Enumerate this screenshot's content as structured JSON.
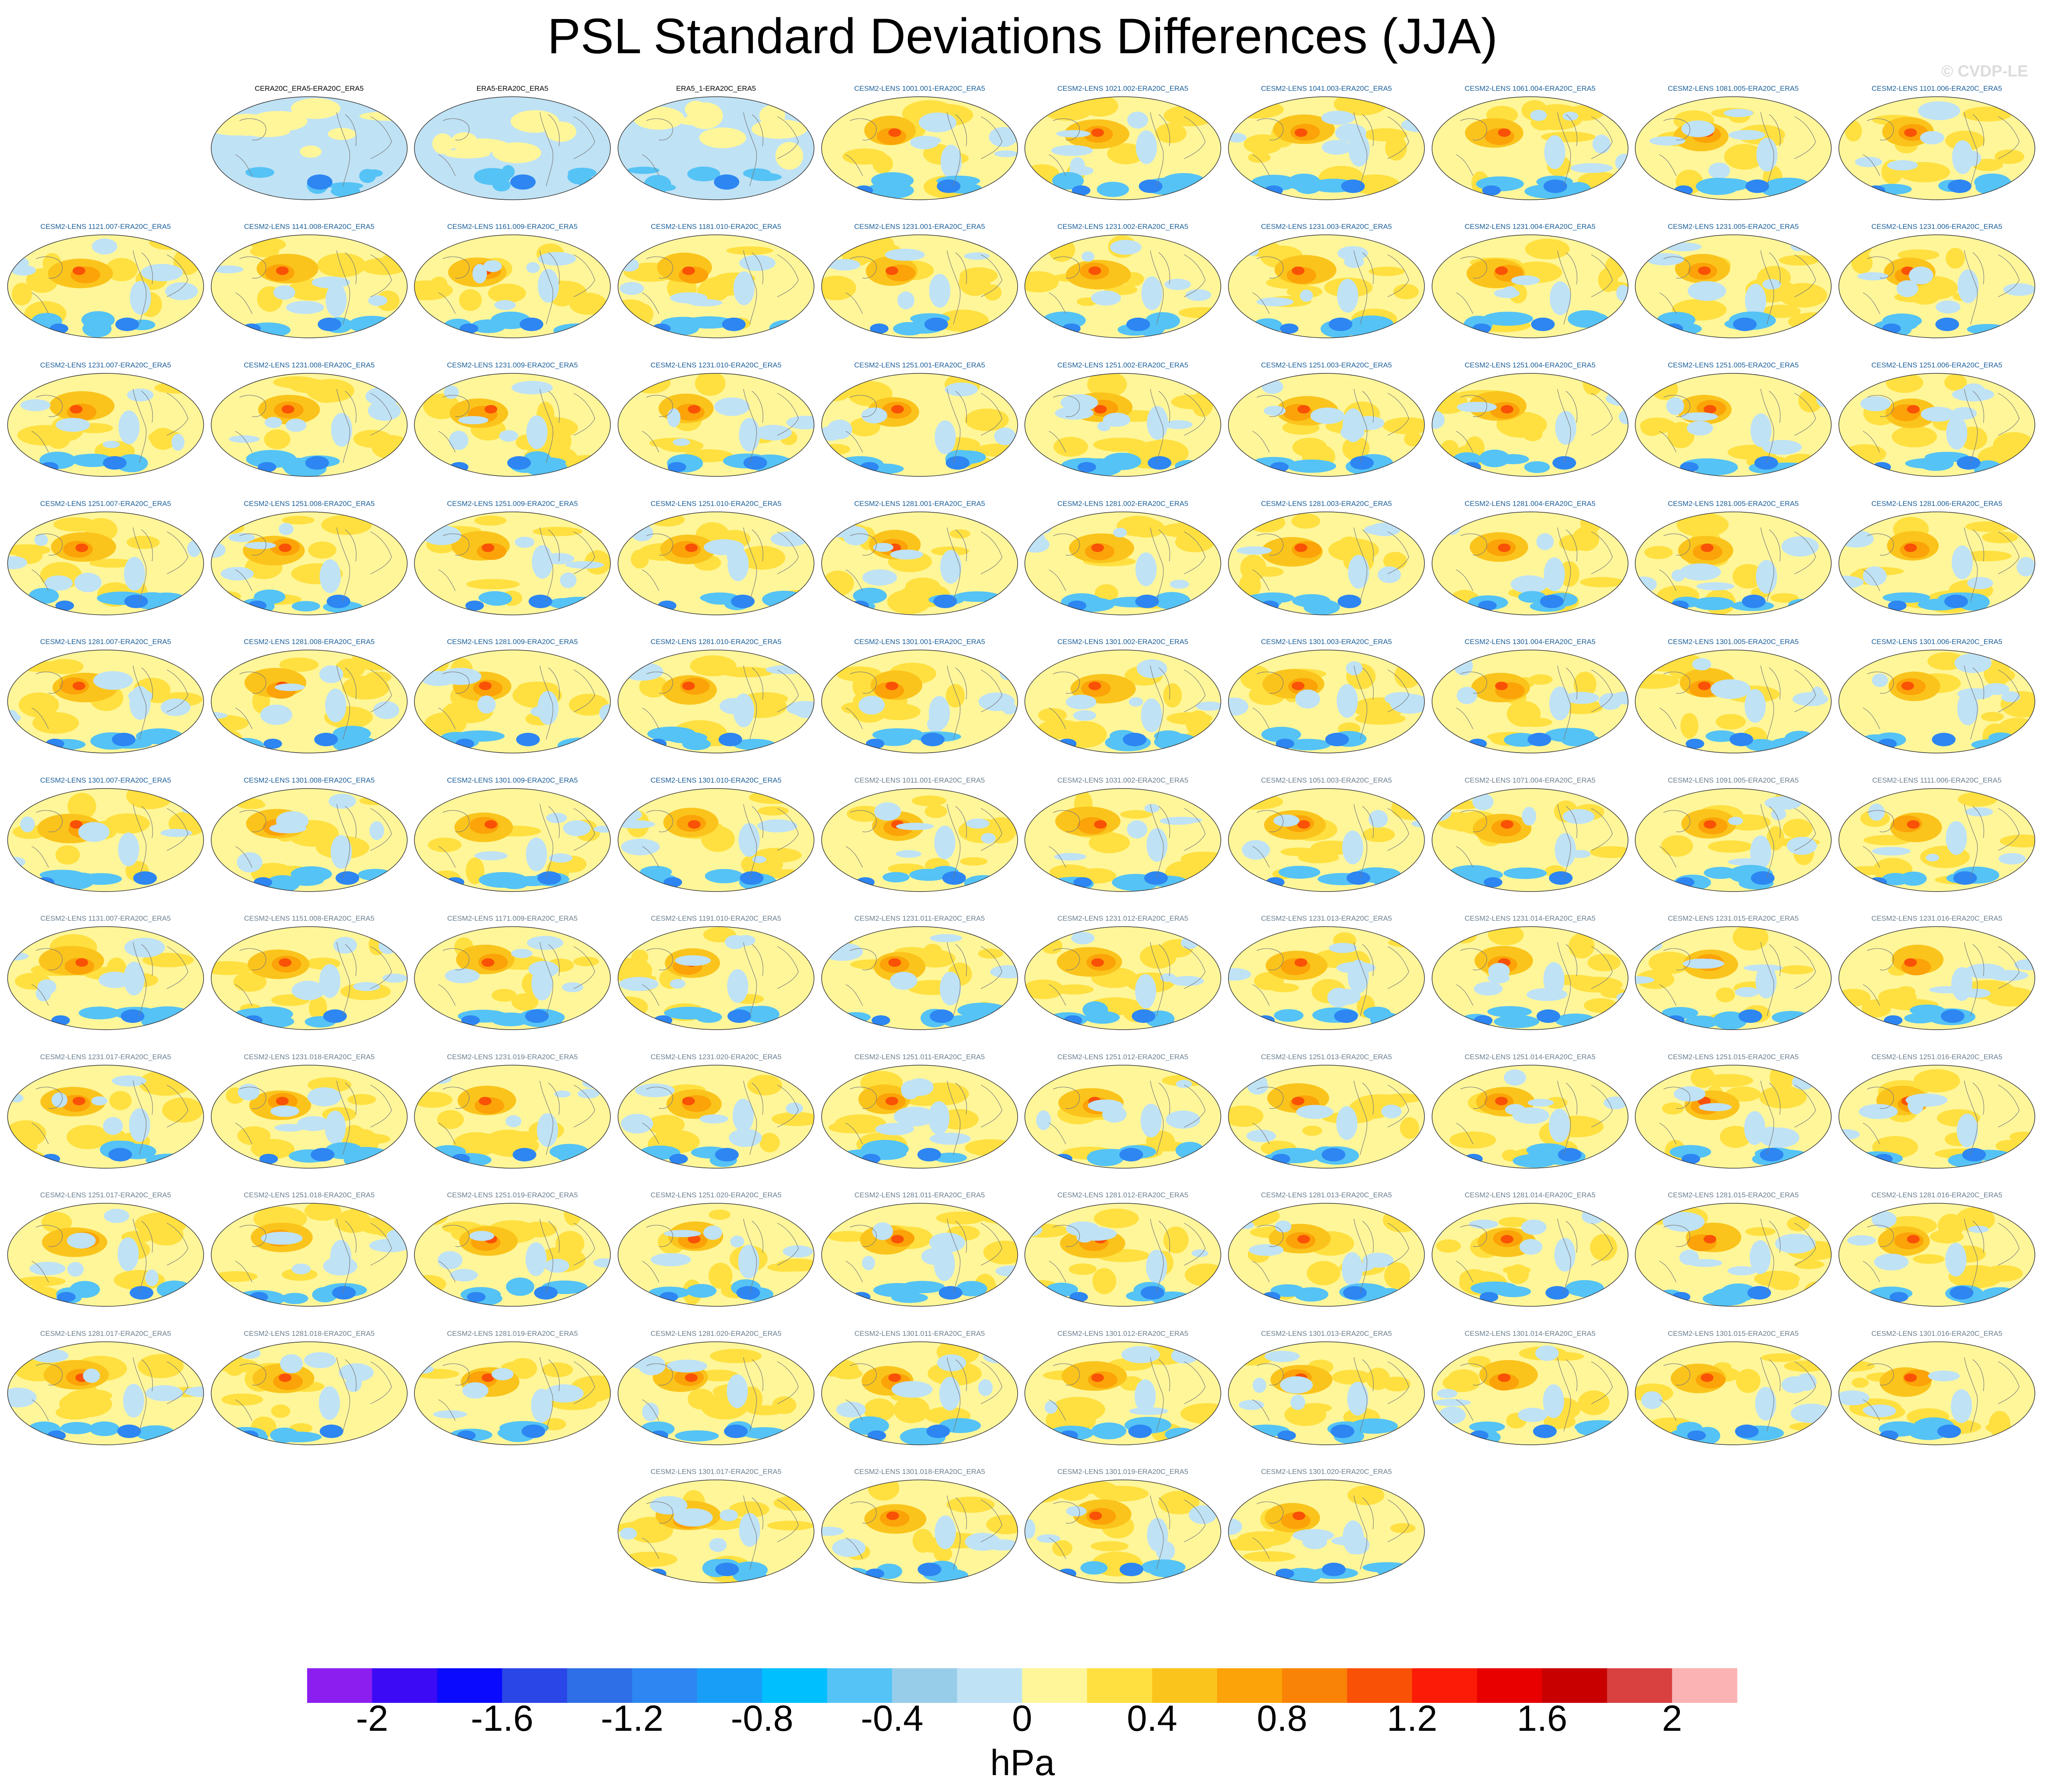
{
  "title": "PSL Standard Deviations Differences (JJA)",
  "watermark": "© CVDP-LE",
  "chart_data": {
    "type": "heatmap",
    "title": "PSL Standard Deviations Differences (JJA)",
    "panels": [
      {
        "label": "CERA20C_ERA5-ERA20C_ERA5",
        "group": "obs"
      },
      {
        "label": "ERA5-ERA20C_ERA5",
        "group": "obs"
      },
      {
        "label": "ERA5_1-ERA20C_ERA5",
        "group": "obs"
      },
      {
        "label": "CESM2-LENS 1001.001-ERA20C_ERA5",
        "group": "a"
      },
      {
        "label": "CESM2-LENS 1021.002-ERA20C_ERA5",
        "group": "a"
      },
      {
        "label": "CESM2-LENS 1041.003-ERA20C_ERA5",
        "group": "a"
      },
      {
        "label": "CESM2-LENS 1061.004-ERA20C_ERA5",
        "group": "a"
      },
      {
        "label": "CESM2-LENS 1081.005-ERA20C_ERA5",
        "group": "a"
      },
      {
        "label": "CESM2-LENS 1101.006-ERA20C_ERA5",
        "group": "a"
      },
      {
        "label": "CESM2-LENS 1121.007-ERA20C_ERA5",
        "group": "a"
      },
      {
        "label": "CESM2-LENS 1141.008-ERA20C_ERA5",
        "group": "a"
      },
      {
        "label": "CESM2-LENS 1161.009-ERA20C_ERA5",
        "group": "a"
      },
      {
        "label": "CESM2-LENS 1181.010-ERA20C_ERA5",
        "group": "a"
      },
      {
        "label": "CESM2-LENS 1231.001-ERA20C_ERA5",
        "group": "a"
      },
      {
        "label": "CESM2-LENS 1231.002-ERA20C_ERA5",
        "group": "a"
      },
      {
        "label": "CESM2-LENS 1231.003-ERA20C_ERA5",
        "group": "a"
      },
      {
        "label": "CESM2-LENS 1231.004-ERA20C_ERA5",
        "group": "a"
      },
      {
        "label": "CESM2-LENS 1231.005-ERA20C_ERA5",
        "group": "a"
      },
      {
        "label": "CESM2-LENS 1231.006-ERA20C_ERA5",
        "group": "a"
      },
      {
        "label": "CESM2-LENS 1231.007-ERA20C_ERA5",
        "group": "a"
      },
      {
        "label": "CESM2-LENS 1231.008-ERA20C_ERA5",
        "group": "a"
      },
      {
        "label": "CESM2-LENS 1231.009-ERA20C_ERA5",
        "group": "a"
      },
      {
        "label": "CESM2-LENS 1231.010-ERA20C_ERA5",
        "group": "a"
      },
      {
        "label": "CESM2-LENS 1251.001-ERA20C_ERA5",
        "group": "a"
      },
      {
        "label": "CESM2-LENS 1251.002-ERA20C_ERA5",
        "group": "a"
      },
      {
        "label": "CESM2-LENS 1251.003-ERA20C_ERA5",
        "group": "a"
      },
      {
        "label": "CESM2-LENS 1251.004-ERA20C_ERA5",
        "group": "a"
      },
      {
        "label": "CESM2-LENS 1251.005-ERA20C_ERA5",
        "group": "a"
      },
      {
        "label": "CESM2-LENS 1251.006-ERA20C_ERA5",
        "group": "a"
      },
      {
        "label": "CESM2-LENS 1251.007-ERA20C_ERA5",
        "group": "a"
      },
      {
        "label": "CESM2-LENS 1251.008-ERA20C_ERA5",
        "group": "a"
      },
      {
        "label": "CESM2-LENS 1251.009-ERA20C_ERA5",
        "group": "a"
      },
      {
        "label": "CESM2-LENS 1251.010-ERA20C_ERA5",
        "group": "a"
      },
      {
        "label": "CESM2-LENS 1281.001-ERA20C_ERA5",
        "group": "a"
      },
      {
        "label": "CESM2-LENS 1281.002-ERA20C_ERA5",
        "group": "a"
      },
      {
        "label": "CESM2-LENS 1281.003-ERA20C_ERA5",
        "group": "a"
      },
      {
        "label": "CESM2-LENS 1281.004-ERA20C_ERA5",
        "group": "a"
      },
      {
        "label": "CESM2-LENS 1281.005-ERA20C_ERA5",
        "group": "a"
      },
      {
        "label": "CESM2-LENS 1281.006-ERA20C_ERA5",
        "group": "a"
      },
      {
        "label": "CESM2-LENS 1281.007-ERA20C_ERA5",
        "group": "a"
      },
      {
        "label": "CESM2-LENS 1281.008-ERA20C_ERA5",
        "group": "a"
      },
      {
        "label": "CESM2-LENS 1281.009-ERA20C_ERA5",
        "group": "a"
      },
      {
        "label": "CESM2-LENS 1281.010-ERA20C_ERA5",
        "group": "a"
      },
      {
        "label": "CESM2-LENS 1301.001-ERA20C_ERA5",
        "group": "a"
      },
      {
        "label": "CESM2-LENS 1301.002-ERA20C_ERA5",
        "group": "a"
      },
      {
        "label": "CESM2-LENS 1301.003-ERA20C_ERA5",
        "group": "a"
      },
      {
        "label": "CESM2-LENS 1301.004-ERA20C_ERA5",
        "group": "a"
      },
      {
        "label": "CESM2-LENS 1301.005-ERA20C_ERA5",
        "group": "a"
      },
      {
        "label": "CESM2-LENS 1301.006-ERA20C_ERA5",
        "group": "a"
      },
      {
        "label": "CESM2-LENS 1301.007-ERA20C_ERA5",
        "group": "a"
      },
      {
        "label": "CESM2-LENS 1301.008-ERA20C_ERA5",
        "group": "a"
      },
      {
        "label": "CESM2-LENS 1301.009-ERA20C_ERA5",
        "group": "a"
      },
      {
        "label": "CESM2-LENS 1301.010-ERA20C_ERA5",
        "group": "a"
      },
      {
        "label": "CESM2-LENS 1011.001-ERA20C_ERA5",
        "group": "b"
      },
      {
        "label": "CESM2-LENS 1031.002-ERA20C_ERA5",
        "group": "b"
      },
      {
        "label": "CESM2-LENS 1051.003-ERA20C_ERA5",
        "group": "b"
      },
      {
        "label": "CESM2-LENS 1071.004-ERA20C_ERA5",
        "group": "b"
      },
      {
        "label": "CESM2-LENS 1091.005-ERA20C_ERA5",
        "group": "b"
      },
      {
        "label": "CESM2-LENS 1111.006-ERA20C_ERA5",
        "group": "b"
      },
      {
        "label": "CESM2-LENS 1131.007-ERA20C_ERA5",
        "group": "b"
      },
      {
        "label": "CESM2-LENS 1151.008-ERA20C_ERA5",
        "group": "b"
      },
      {
        "label": "CESM2-LENS 1171.009-ERA20C_ERA5",
        "group": "b"
      },
      {
        "label": "CESM2-LENS 1191.010-ERA20C_ERA5",
        "group": "b"
      },
      {
        "label": "CESM2-LENS 1231.011-ERA20C_ERA5",
        "group": "b"
      },
      {
        "label": "CESM2-LENS 1231.012-ERA20C_ERA5",
        "group": "b"
      },
      {
        "label": "CESM2-LENS 1231.013-ERA20C_ERA5",
        "group": "b"
      },
      {
        "label": "CESM2-LENS 1231.014-ERA20C_ERA5",
        "group": "b"
      },
      {
        "label": "CESM2-LENS 1231.015-ERA20C_ERA5",
        "group": "b"
      },
      {
        "label": "CESM2-LENS 1231.016-ERA20C_ERA5",
        "group": "b"
      },
      {
        "label": "CESM2-LENS 1231.017-ERA20C_ERA5",
        "group": "b"
      },
      {
        "label": "CESM2-LENS 1231.018-ERA20C_ERA5",
        "group": "b"
      },
      {
        "label": "CESM2-LENS 1231.019-ERA20C_ERA5",
        "group": "b"
      },
      {
        "label": "CESM2-LENS 1231.020-ERA20C_ERA5",
        "group": "b"
      },
      {
        "label": "CESM2-LENS 1251.011-ERA20C_ERA5",
        "group": "b"
      },
      {
        "label": "CESM2-LENS 1251.012-ERA20C_ERA5",
        "group": "b"
      },
      {
        "label": "CESM2-LENS 1251.013-ERA20C_ERA5",
        "group": "b"
      },
      {
        "label": "CESM2-LENS 1251.014-ERA20C_ERA5",
        "group": "b"
      },
      {
        "label": "CESM2-LENS 1251.015-ERA20C_ERA5",
        "group": "b"
      },
      {
        "label": "CESM2-LENS 1251.016-ERA20C_ERA5",
        "group": "b"
      },
      {
        "label": "CESM2-LENS 1251.017-ERA20C_ERA5",
        "group": "b"
      },
      {
        "label": "CESM2-LENS 1251.018-ERA20C_ERA5",
        "group": "b"
      },
      {
        "label": "CESM2-LENS 1251.019-ERA20C_ERA5",
        "group": "b"
      },
      {
        "label": "CESM2-LENS 1251.020-ERA20C_ERA5",
        "group": "b"
      },
      {
        "label": "CESM2-LENS 1281.011-ERA20C_ERA5",
        "group": "b"
      },
      {
        "label": "CESM2-LENS 1281.012-ERA20C_ERA5",
        "group": "b"
      },
      {
        "label": "CESM2-LENS 1281.013-ERA20C_ERA5",
        "group": "b"
      },
      {
        "label": "CESM2-LENS 1281.014-ERA20C_ERA5",
        "group": "b"
      },
      {
        "label": "CESM2-LENS 1281.015-ERA20C_ERA5",
        "group": "b"
      },
      {
        "label": "CESM2-LENS 1281.016-ERA20C_ERA5",
        "group": "b"
      },
      {
        "label": "CESM2-LENS 1281.017-ERA20C_ERA5",
        "group": "b"
      },
      {
        "label": "CESM2-LENS 1281.018-ERA20C_ERA5",
        "group": "b"
      },
      {
        "label": "CESM2-LENS 1281.019-ERA20C_ERA5",
        "group": "b"
      },
      {
        "label": "CESM2-LENS 1281.020-ERA20C_ERA5",
        "group": "b"
      },
      {
        "label": "CESM2-LENS 1301.011-ERA20C_ERA5",
        "group": "b"
      },
      {
        "label": "CESM2-LENS 1301.012-ERA20C_ERA5",
        "group": "b"
      },
      {
        "label": "CESM2-LENS 1301.013-ERA20C_ERA5",
        "group": "b"
      },
      {
        "label": "CESM2-LENS 1301.014-ERA20C_ERA5",
        "group": "b"
      },
      {
        "label": "CESM2-LENS 1301.015-ERA20C_ERA5",
        "group": "b"
      },
      {
        "label": "CESM2-LENS 1301.016-ERA20C_ERA5",
        "group": "b"
      },
      {
        "label": "CESM2-LENS 1301.017-ERA20C_ERA5",
        "group": "b"
      },
      {
        "label": "CESM2-LENS 1301.018-ERA20C_ERA5",
        "group": "b"
      },
      {
        "label": "CESM2-LENS 1301.019-ERA20C_ERA5",
        "group": "b"
      },
      {
        "label": "CESM2-LENS 1301.020-ERA20C_ERA5",
        "group": "b"
      }
    ],
    "colorbar": {
      "units": "hPa",
      "range": [
        -2.2,
        2.2
      ],
      "step": 0.2,
      "tick_labels": [
        "-2",
        "-1.6",
        "-1.2",
        "-0.8",
        "-0.4",
        "0",
        "0.4",
        "0.8",
        "1.2",
        "1.6",
        "2"
      ],
      "tick_values": [
        -2,
        -1.6,
        -1.2,
        -0.8,
        -0.4,
        0,
        0.4,
        0.8,
        1.2,
        1.6,
        2
      ],
      "colors": [
        "#8c1ef0",
        "#3c0af5",
        "#0a0aff",
        "#2a46e6",
        "#2e6fe8",
        "#2d86f2",
        "#199ef7",
        "#00bfff",
        "#55c3f5",
        "#98cde9",
        "#bfe2f5",
        "#fff69a",
        "#ffe040",
        "#fbc41c",
        "#fba308",
        "#f98306",
        "#f95106",
        "#fb1b06",
        "#e80000",
        "#c80000",
        "#d94040",
        "#fbb3b3"
      ]
    },
    "label_colors": {
      "obs": "#000000",
      "a": "#1b5f9a",
      "b": "#6b7f8f"
    }
  }
}
